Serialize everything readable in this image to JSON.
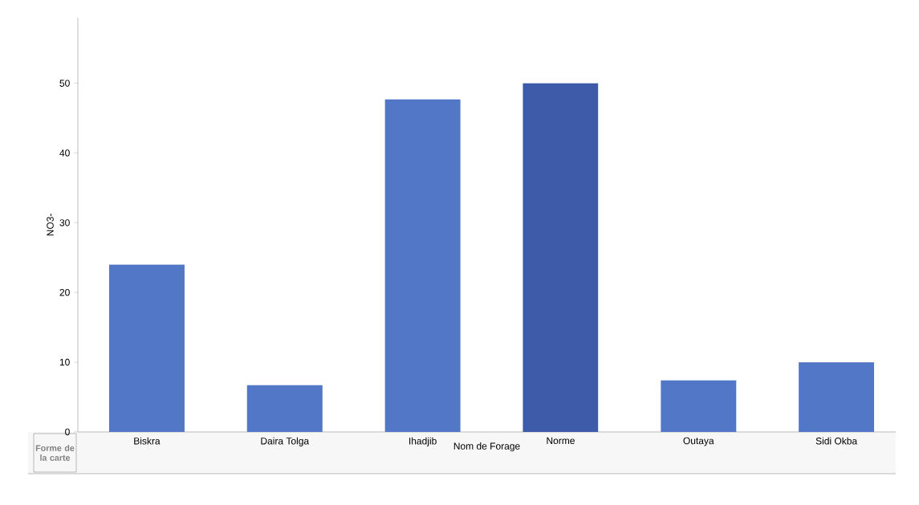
{
  "chart_data": {
    "type": "bar",
    "xlabel": "Nom de Forage",
    "ylabel": "NO3-",
    "categories": [
      "Biskra",
      "Daira Tolga",
      "Ihadjib",
      "Norme",
      "Outaya",
      "Sidi Okba"
    ],
    "values": [
      24,
      6.7,
      47.7,
      50,
      7.4,
      10
    ],
    "colors": [
      "#5277c7",
      "#5277c7",
      "#5277c7",
      "#3d5ba8",
      "#5277c7",
      "#5277c7"
    ],
    "ylim": [
      0,
      59.4
    ],
    "yticks": [
      0,
      10,
      20,
      30,
      40,
      50
    ],
    "annotations": [
      "Forme de la carte"
    ]
  }
}
